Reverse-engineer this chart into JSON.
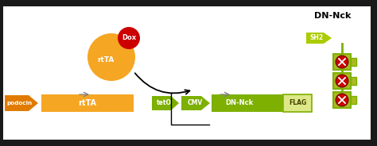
{
  "bg_color": "#1a1a1a",
  "panel1_bg": "#ffffff",
  "panel2_bg": "#ffffff",
  "orange": "#f5a623",
  "dark_orange": "#e07b00",
  "green": "#7db000",
  "light_green": "#aacc00",
  "green_border": "#5a8a00",
  "red": "#cc0000",
  "dark_red": "#880000",
  "podocin_label": "podocin",
  "rtTA_label": "rtTA",
  "teto_label": "tetO",
  "cmv_label": "CMV",
  "dnnck_label": "DN-Nck",
  "flag_label": "FLAG",
  "sh2_label": "SH2",
  "dnnck_title": "DN-Nck",
  "dox_label": "Dox"
}
